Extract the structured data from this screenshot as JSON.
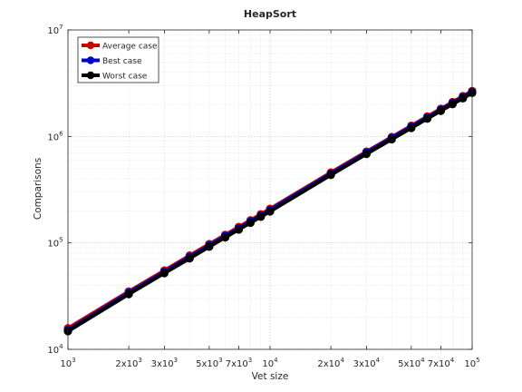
{
  "chart_data": {
    "type": "line",
    "title": "HeapSort",
    "xlabel": "Vet size",
    "ylabel": "Comparisons",
    "xscale": "log",
    "yscale": "log",
    "xlim": [
      1000,
      100000
    ],
    "ylim": [
      10000,
      10000000
    ],
    "grid": true,
    "minor_grid": true,
    "legend_position": "top-left",
    "x_ticks": [
      {
        "value": 1000,
        "base": "10",
        "exp": "3"
      },
      {
        "value": 2000,
        "base": "2x10",
        "exp": "3"
      },
      {
        "value": 3000,
        "base": "3x10",
        "exp": "3"
      },
      {
        "value": 5000,
        "base": "5x10",
        "exp": "3"
      },
      {
        "value": 7000,
        "base": "7x10",
        "exp": "3"
      },
      {
        "value": 10000,
        "base": "10",
        "exp": "4"
      },
      {
        "value": 20000,
        "base": "2x10",
        "exp": "4"
      },
      {
        "value": 30000,
        "base": "3x10",
        "exp": "4"
      },
      {
        "value": 50000,
        "base": "5x10",
        "exp": "4"
      },
      {
        "value": 70000,
        "base": "7x10",
        "exp": "4"
      },
      {
        "value": 100000,
        "base": "10",
        "exp": "5"
      }
    ],
    "y_ticks": [
      {
        "value": 10000,
        "base": "10",
        "exp": "4"
      },
      {
        "value": 100000,
        "base": "10",
        "exp": "5"
      },
      {
        "value": 1000000,
        "base": "10",
        "exp": "6"
      },
      {
        "value": 10000000,
        "base": "10",
        "exp": "7"
      }
    ],
    "x": [
      1000,
      2000,
      3000,
      4000,
      5000,
      6000,
      7000,
      8000,
      9000,
      10000,
      20000,
      30000,
      40000,
      50000,
      60000,
      70000,
      80000,
      90000,
      100000
    ],
    "series": [
      {
        "name": "Average case",
        "color": "#cc0000",
        "values": [
          15800,
          35000,
          55000,
          76000,
          97500,
          119000,
          141000,
          163000,
          186000,
          209000,
          458000,
          719000,
          987000,
          1260000,
          1540000,
          1820000,
          2100000,
          2390000,
          2670000
        ]
      },
      {
        "name": "Best case",
        "color": "#0000cc",
        "values": [
          15200,
          34000,
          53500,
          74000,
          94500,
          116000,
          137500,
          159000,
          181000,
          204000,
          448000,
          705000,
          968000,
          1240000,
          1510000,
          1790000,
          2070000,
          2350000,
          2630000
        ]
      },
      {
        "name": "Worst case",
        "color": "#000000",
        "values": [
          14800,
          33000,
          52000,
          71500,
          92000,
          112500,
          133500,
          154500,
          176000,
          197500,
          435000,
          685000,
          940000,
          1200000,
          1470000,
          1740000,
          2010000,
          2280000,
          2560000
        ]
      }
    ]
  }
}
